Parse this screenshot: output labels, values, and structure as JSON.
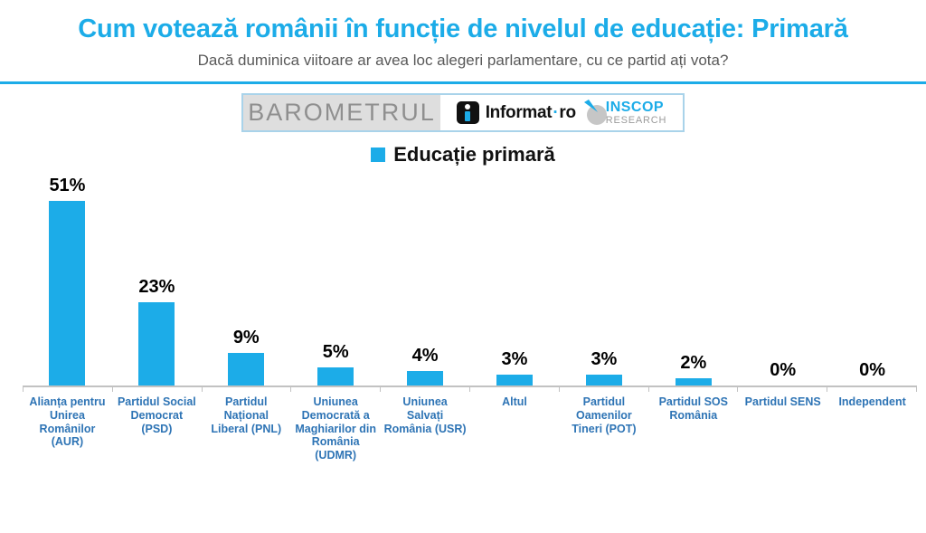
{
  "header": {
    "title": "Cum votează românii în funcție de nivelul de educație: Primară",
    "subtitle": "Dacă duminica viitoare ar avea loc alegeri parlamentare, cu ce partid ați vota?"
  },
  "banner": {
    "barometrul": "BAROMETRUL",
    "informat": {
      "name": "Informat",
      "dot": "·",
      "suffix": "ro"
    },
    "inscop": {
      "line1": "INSCOP",
      "line2": "RESEARCH"
    }
  },
  "legend": {
    "label": "Educație primară",
    "swatch_color": "#1CACE8"
  },
  "colors": {
    "accent_blue": "#1CACE8",
    "category_label_blue": "#2E74B5",
    "subtitle_gray": "#595959",
    "axis_gray": "#C2C2C2"
  },
  "chart_data": {
    "type": "bar",
    "title": "Educație primară",
    "xlabel": "",
    "ylabel": "",
    "grid": false,
    "legend_position": "top",
    "ylim": [
      0,
      57
    ],
    "bar_color": "#1CACE8",
    "categories": [
      "Alianța pentru Unirea Românilor (AUR)",
      "Partidul Social Democrat (PSD)",
      "Partidul Național Liberal (PNL)",
      "Uniunea Democrată a Maghiarilor din România (UDMR)",
      "Uniunea Salvați România (USR)",
      "Altul",
      "Partidul Oamenilor Tineri (POT)",
      "Partidul SOS România",
      "Partidul SENS",
      "Independent"
    ],
    "values": [
      51,
      23,
      9,
      5,
      4,
      3,
      3,
      2,
      0,
      0
    ],
    "value_labels": [
      "51%",
      "23%",
      "9%",
      "5%",
      "4%",
      "3%",
      "3%",
      "2%",
      "0%",
      "0%"
    ]
  }
}
